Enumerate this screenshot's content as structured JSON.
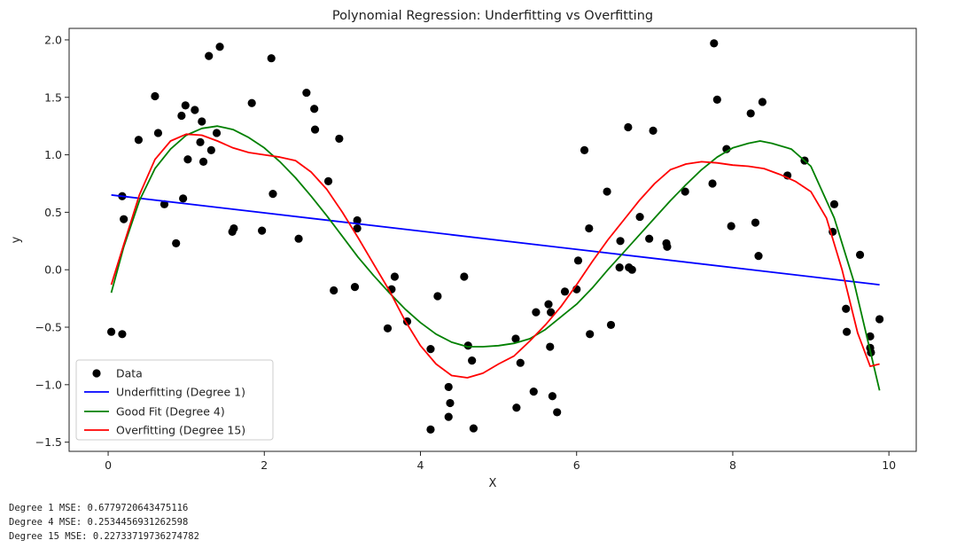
{
  "chart_data": {
    "type": "scatter",
    "title": "Polynomial Regression: Underfitting vs Overfitting",
    "xlabel": "X",
    "ylabel": "y",
    "xlim": [
      -0.5,
      10.35
    ],
    "ylim": [
      -1.58,
      2.1
    ],
    "xticks": [
      0,
      2,
      4,
      6,
      8,
      10
    ],
    "xtick_labels": [
      "0",
      "2",
      "4",
      "6",
      "8",
      "10"
    ],
    "yticks": [
      -1.5,
      -1.0,
      -0.5,
      0.0,
      0.5,
      1.0,
      1.5,
      2.0
    ],
    "ytick_labels": [
      "−1.5",
      "−1.0",
      "−0.5",
      "0.0",
      "0.5",
      "1.0",
      "1.5",
      "2.0"
    ],
    "legend_position": "lower-left",
    "scatter": {
      "name": "Data",
      "color": "#000000",
      "points": [
        [
          0.04,
          -0.54
        ],
        [
          0.18,
          -0.56
        ],
        [
          0.18,
          0.64
        ],
        [
          0.2,
          0.44
        ],
        [
          0.39,
          1.13
        ],
        [
          0.6,
          1.51
        ],
        [
          0.64,
          1.19
        ],
        [
          0.72,
          0.57
        ],
        [
          0.87,
          0.23
        ],
        [
          0.94,
          1.34
        ],
        [
          0.96,
          0.62
        ],
        [
          0.99,
          1.43
        ],
        [
          1.02,
          0.96
        ],
        [
          1.11,
          1.39
        ],
        [
          1.18,
          1.11
        ],
        [
          1.2,
          1.29
        ],
        [
          1.22,
          0.94
        ],
        [
          1.29,
          1.86
        ],
        [
          1.32,
          1.04
        ],
        [
          1.39,
          1.19
        ],
        [
          1.43,
          1.94
        ],
        [
          1.59,
          0.33
        ],
        [
          1.61,
          0.36
        ],
        [
          1.84,
          1.45
        ],
        [
          1.97,
          0.34
        ],
        [
          2.09,
          1.84
        ],
        [
          2.11,
          0.66
        ],
        [
          2.44,
          0.27
        ],
        [
          2.54,
          1.54
        ],
        [
          2.64,
          1.4
        ],
        [
          2.65,
          1.22
        ],
        [
          2.82,
          0.77
        ],
        [
          2.89,
          -0.18
        ],
        [
          2.96,
          1.14
        ],
        [
          3.16,
          -0.15
        ],
        [
          3.19,
          0.43
        ],
        [
          3.19,
          0.36
        ],
        [
          3.58,
          -0.51
        ],
        [
          3.63,
          -0.17
        ],
        [
          3.67,
          -0.06
        ],
        [
          3.83,
          -0.45
        ],
        [
          4.13,
          -1.39
        ],
        [
          4.13,
          -0.69
        ],
        [
          4.22,
          -0.23
        ],
        [
          4.36,
          -1.28
        ],
        [
          4.36,
          -1.02
        ],
        [
          4.38,
          -1.16
        ],
        [
          4.56,
          -0.06
        ],
        [
          4.61,
          -0.66
        ],
        [
          4.66,
          -0.79
        ],
        [
          4.68,
          -1.38
        ],
        [
          5.22,
          -0.6
        ],
        [
          5.23,
          -1.2
        ],
        [
          5.28,
          -0.81
        ],
        [
          5.45,
          -1.06
        ],
        [
          5.48,
          -0.37
        ],
        [
          5.64,
          -0.3
        ],
        [
          5.66,
          -0.67
        ],
        [
          5.67,
          -0.37
        ],
        [
          5.69,
          -1.1
        ],
        [
          5.75,
          -1.24
        ],
        [
          5.85,
          -0.19
        ],
        [
          6.0,
          -0.17
        ],
        [
          6.02,
          0.08
        ],
        [
          6.1,
          1.04
        ],
        [
          6.16,
          0.36
        ],
        [
          6.17,
          -0.56
        ],
        [
          6.39,
          0.68
        ],
        [
          6.44,
          -0.48
        ],
        [
          6.55,
          0.02
        ],
        [
          6.56,
          0.25
        ],
        [
          6.66,
          1.24
        ],
        [
          6.67,
          0.02
        ],
        [
          6.71,
          0.0
        ],
        [
          6.81,
          0.46
        ],
        [
          6.93,
          0.27
        ],
        [
          6.98,
          1.21
        ],
        [
          7.15,
          0.23
        ],
        [
          7.16,
          0.2
        ],
        [
          7.39,
          0.68
        ],
        [
          7.74,
          0.75
        ],
        [
          7.76,
          1.97
        ],
        [
          7.8,
          1.48
        ],
        [
          7.92,
          1.05
        ],
        [
          7.98,
          0.38
        ],
        [
          8.23,
          1.36
        ],
        [
          8.29,
          0.41
        ],
        [
          8.33,
          0.12
        ],
        [
          8.38,
          1.46
        ],
        [
          8.7,
          0.82
        ],
        [
          8.92,
          0.95
        ],
        [
          9.28,
          0.33
        ],
        [
          9.3,
          0.57
        ],
        [
          9.45,
          -0.34
        ],
        [
          9.46,
          -0.54
        ],
        [
          9.63,
          0.13
        ],
        [
          9.76,
          -0.58
        ],
        [
          9.76,
          -0.68
        ],
        [
          9.77,
          -0.72
        ],
        [
          9.88,
          -0.43
        ]
      ]
    },
    "series": [
      {
        "name": "Underfitting (Degree 1)",
        "color": "#0000ff",
        "x": [
          0.04,
          9.88
        ],
        "y": [
          0.65,
          -0.13
        ]
      },
      {
        "name": "Good Fit (Degree 4)",
        "color": "#008000",
        "x": [
          0.04,
          0.2,
          0.4,
          0.6,
          0.8,
          1.0,
          1.2,
          1.4,
          1.6,
          1.8,
          2.0,
          2.2,
          2.4,
          2.6,
          2.8,
          3.0,
          3.2,
          3.4,
          3.6,
          3.8,
          4.0,
          4.2,
          4.4,
          4.6,
          4.8,
          5.0,
          5.2,
          5.4,
          5.6,
          5.8,
          6.0,
          6.2,
          6.4,
          6.6,
          6.8,
          7.0,
          7.2,
          7.4,
          7.6,
          7.8,
          8.0,
          8.2,
          8.35,
          8.5,
          8.75,
          9.0,
          9.3,
          9.55,
          9.88
        ],
        "y": [
          -0.2,
          0.2,
          0.6,
          0.88,
          1.05,
          1.17,
          1.23,
          1.25,
          1.22,
          1.15,
          1.06,
          0.94,
          0.8,
          0.64,
          0.47,
          0.29,
          0.11,
          -0.05,
          -0.2,
          -0.34,
          -0.46,
          -0.56,
          -0.63,
          -0.67,
          -0.67,
          -0.66,
          -0.64,
          -0.6,
          -0.52,
          -0.41,
          -0.3,
          -0.16,
          0.0,
          0.15,
          0.3,
          0.45,
          0.6,
          0.74,
          0.87,
          0.98,
          1.06,
          1.1,
          1.12,
          1.1,
          1.05,
          0.9,
          0.45,
          -0.1,
          -1.05
        ]
      },
      {
        "name": "Overfitting (Degree 15)",
        "color": "#ff0000",
        "x": [
          0.04,
          0.2,
          0.4,
          0.6,
          0.8,
          1.0,
          1.2,
          1.4,
          1.6,
          1.8,
          2.0,
          2.2,
          2.4,
          2.6,
          2.8,
          3.0,
          3.2,
          3.4,
          3.6,
          3.8,
          4.0,
          4.2,
          4.4,
          4.6,
          4.8,
          5.0,
          5.2,
          5.4,
          5.6,
          5.8,
          6.0,
          6.2,
          6.4,
          6.6,
          6.8,
          7.0,
          7.2,
          7.4,
          7.6,
          7.8,
          8.0,
          8.2,
          8.4,
          8.6,
          8.8,
          9.0,
          9.2,
          9.4,
          9.6,
          9.76,
          9.88
        ],
        "y": [
          -0.13,
          0.22,
          0.65,
          0.96,
          1.12,
          1.18,
          1.17,
          1.12,
          1.06,
          1.02,
          1.0,
          0.98,
          0.95,
          0.85,
          0.7,
          0.5,
          0.28,
          0.05,
          -0.18,
          -0.44,
          -0.66,
          -0.82,
          -0.92,
          -0.94,
          -0.9,
          -0.82,
          -0.75,
          -0.62,
          -0.48,
          -0.32,
          -0.13,
          0.07,
          0.26,
          0.43,
          0.6,
          0.75,
          0.87,
          0.92,
          0.94,
          0.93,
          0.91,
          0.9,
          0.88,
          0.83,
          0.77,
          0.68,
          0.45,
          0.0,
          -0.55,
          -0.84,
          -0.82
        ]
      }
    ]
  },
  "output_lines": {
    "line1": "Degree 1 MSE: 0.6779720643475116",
    "line2": "Degree 4 MSE: 0.2534456931262598",
    "line3": "Degree 15 MSE: 0.22733719736274782"
  }
}
